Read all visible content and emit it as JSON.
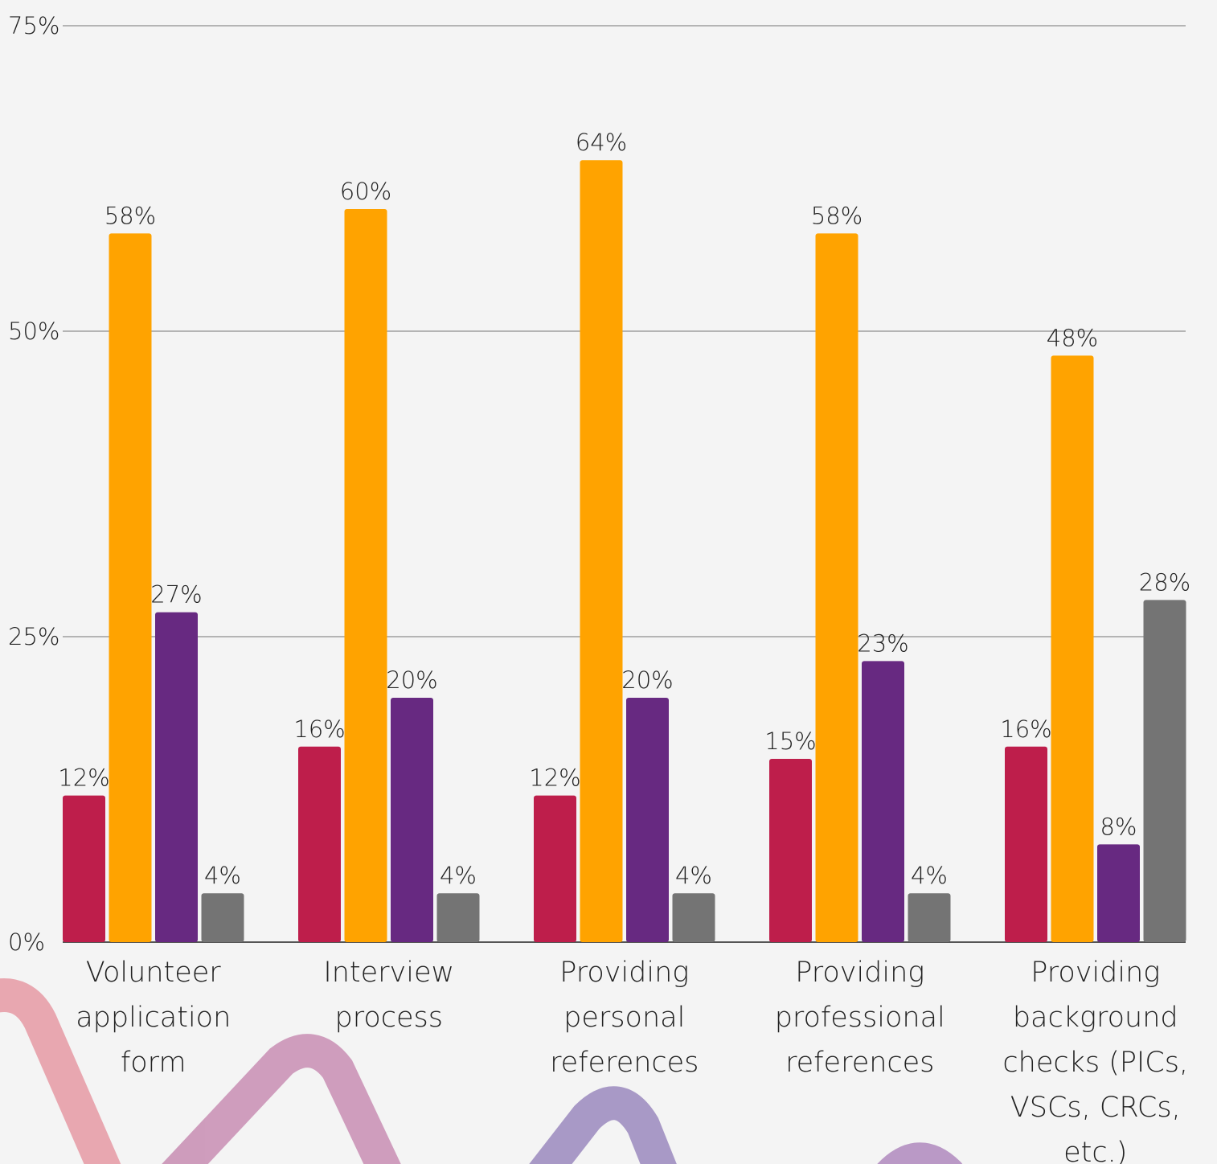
{
  "chart_data": {
    "type": "bar",
    "categories": [
      "Volunteer application form",
      "Interview process",
      "Providing personal references",
      "Providing professional references",
      "Providing background checks (PICs, VSCs, CRCs, etc.)"
    ],
    "series": [
      {
        "color": "#be1e4b",
        "values": [
          12,
          16,
          12,
          15,
          16
        ],
        "value_labels": [
          "12%",
          "16%",
          "12%",
          "15%",
          "16%"
        ]
      },
      {
        "color": "#ffa300",
        "values": [
          58,
          60,
          64,
          58,
          48
        ],
        "value_labels": [
          "58%",
          "60%",
          "64%",
          "58%",
          "48%"
        ]
      },
      {
        "color": "#672981",
        "values": [
          27,
          20,
          20,
          23,
          8
        ],
        "value_labels": [
          "27%",
          "20%",
          "20%",
          "23%",
          "8%"
        ]
      },
      {
        "color": "#747474",
        "values": [
          4,
          4,
          4,
          4,
          28
        ],
        "value_labels": [
          "4%",
          "4%",
          "4%",
          "4%",
          "28%"
        ]
      }
    ],
    "ylim": [
      0,
      75
    ],
    "yticks": [
      {
        "value": 0,
        "label": "0%"
      },
      {
        "value": 25,
        "label": "25%"
      },
      {
        "value": 50,
        "label": "50%"
      },
      {
        "value": 75,
        "label": "75%"
      }
    ],
    "grid": true
  }
}
